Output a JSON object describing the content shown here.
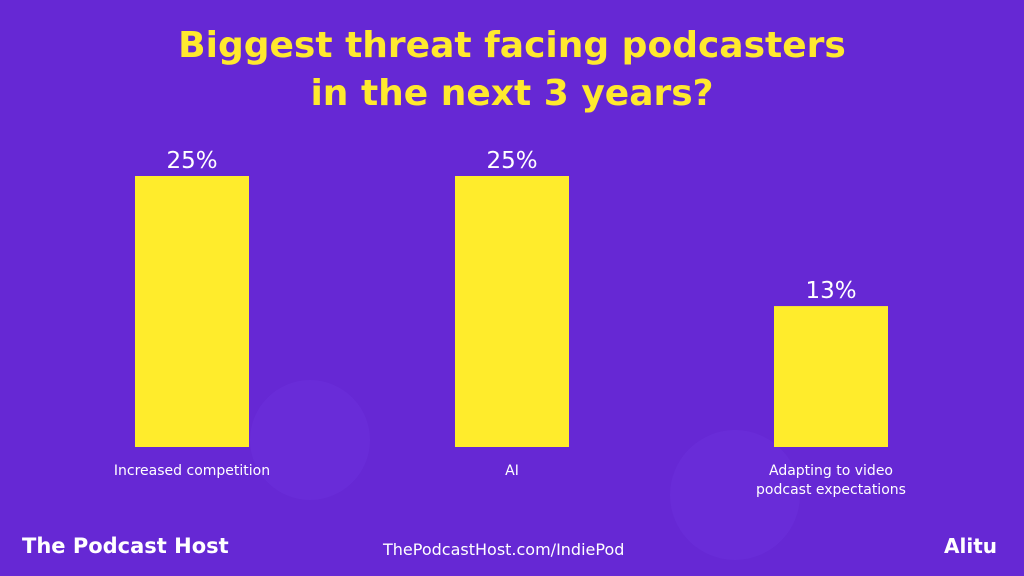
{
  "chart_data": {
    "type": "bar",
    "title": "Biggest threat facing podcasters in the next 3 years?",
    "title_lines": [
      "Biggest threat facing podcasters",
      "in the next 3 years?"
    ],
    "categories": [
      "Increased competition",
      "AI",
      "Adapting to video podcast expectations"
    ],
    "category_lines": [
      [
        "Increased competition"
      ],
      [
        "AI"
      ],
      [
        "Adapting to video",
        "podcast expectations"
      ]
    ],
    "values": [
      25,
      25,
      13
    ],
    "data_labels": [
      "25%",
      "25%",
      "13%"
    ],
    "grid": false,
    "bar_color": "#ffec2c",
    "background_color": "#6628d4",
    "title_color": "#ffe92e"
  },
  "footer": {
    "brand": "The Podcast Host",
    "url": "ThePodcastHost.com/IndiePod",
    "partner": "Alitu"
  }
}
